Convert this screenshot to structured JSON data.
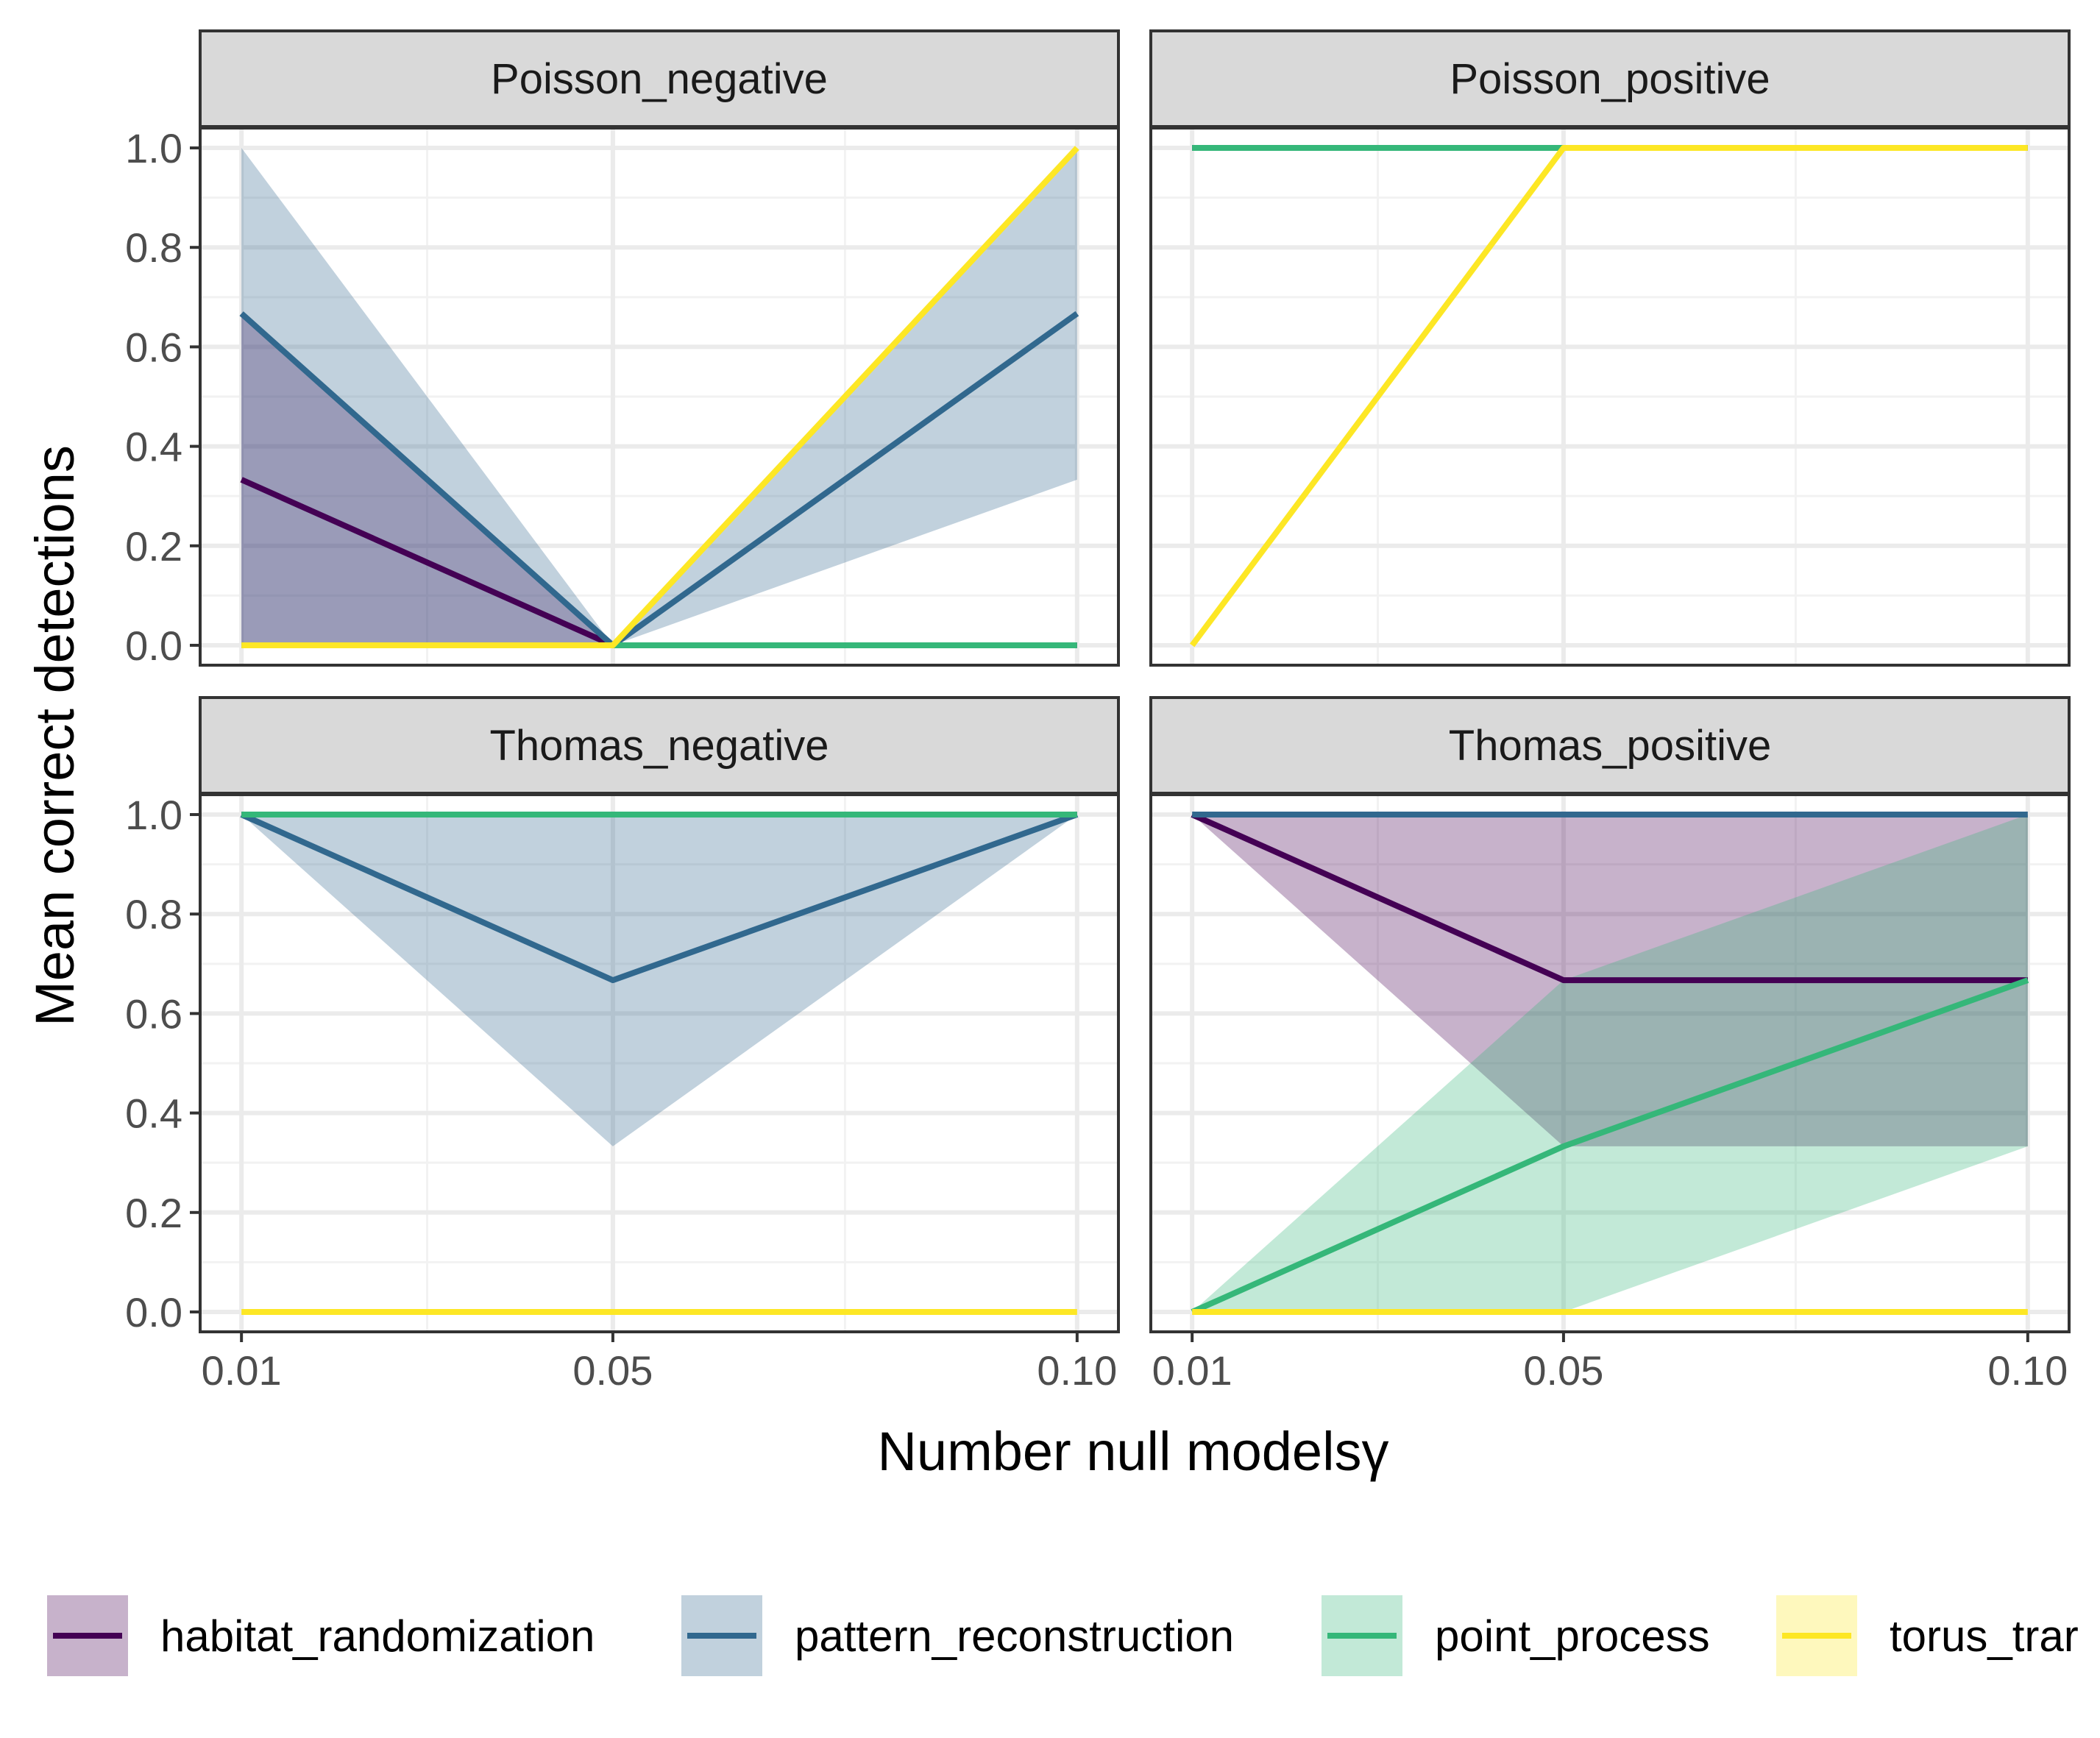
{
  "chart_data": {
    "type": "line",
    "xlabel": "Number null modelsγ",
    "ylabel": "Mean correct detections",
    "x": [
      0.01,
      0.05,
      0.1
    ],
    "x_tick_labels": [
      "0.01",
      "0.05",
      "0.10"
    ],
    "y_tick_labels": [
      "0.0",
      "0.2",
      "0.4",
      "0.6",
      "0.8",
      "1.0"
    ],
    "ylim": [
      -0.04,
      1.04
    ],
    "grid": true,
    "legend_position": "bottom",
    "series_colors": {
      "habitat_randomization": "#440154",
      "pattern_reconstruction": "#31688e",
      "point_process": "#35b779",
      "torus_translation": "#fde725"
    },
    "legend": [
      {
        "key": "habitat_randomization",
        "label": "habitat_randomization"
      },
      {
        "key": "pattern_reconstruction",
        "label": "pattern_reconstruction"
      },
      {
        "key": "point_process",
        "label": "point_process"
      },
      {
        "key": "torus_translation",
        "label": "torus_trar"
      }
    ],
    "panels": [
      {
        "title": "Poisson_negative",
        "series": [
          {
            "key": "habitat_randomization",
            "values": [
              0.333,
              0,
              0
            ],
            "lower": [
              0,
              0,
              0
            ],
            "upper": [
              0.667,
              0,
              0
            ]
          },
          {
            "key": "pattern_reconstruction",
            "values": [
              0.667,
              0,
              0.667
            ],
            "lower": [
              0,
              0,
              0.333
            ],
            "upper": [
              1,
              0,
              1
            ]
          },
          {
            "key": "point_process",
            "values": [
              0,
              0,
              0
            ],
            "lower": [
              0,
              0,
              0
            ],
            "upper": [
              0,
              0,
              0
            ]
          },
          {
            "key": "torus_translation",
            "values": [
              0,
              0,
              1
            ],
            "lower": [
              0,
              0,
              1
            ],
            "upper": [
              0,
              0,
              1
            ]
          }
        ]
      },
      {
        "title": "Poisson_positive",
        "series": [
          {
            "key": "habitat_randomization",
            "values": [
              1,
              1,
              1
            ],
            "lower": [
              1,
              1,
              1
            ],
            "upper": [
              1,
              1,
              1
            ]
          },
          {
            "key": "pattern_reconstruction",
            "values": [
              1,
              1,
              1
            ],
            "lower": [
              1,
              1,
              1
            ],
            "upper": [
              1,
              1,
              1
            ]
          },
          {
            "key": "point_process",
            "values": [
              1,
              1,
              1
            ],
            "lower": [
              1,
              1,
              1
            ],
            "upper": [
              1,
              1,
              1
            ]
          },
          {
            "key": "torus_translation",
            "values": [
              0,
              1,
              1
            ],
            "lower": [
              0,
              1,
              1
            ],
            "upper": [
              0,
              1,
              1
            ]
          }
        ]
      },
      {
        "title": "Thomas_negative",
        "series": [
          {
            "key": "habitat_randomization",
            "values": [
              1,
              1,
              1
            ],
            "lower": [
              1,
              1,
              1
            ],
            "upper": [
              1,
              1,
              1
            ]
          },
          {
            "key": "pattern_reconstruction",
            "values": [
              1,
              0.667,
              1
            ],
            "lower": [
              1,
              0.333,
              1
            ],
            "upper": [
              1,
              1,
              1
            ]
          },
          {
            "key": "point_process",
            "values": [
              1,
              1,
              1
            ],
            "lower": [
              1,
              1,
              1
            ],
            "upper": [
              1,
              1,
              1
            ]
          },
          {
            "key": "torus_translation",
            "values": [
              0,
              0,
              0
            ],
            "lower": [
              0,
              0,
              0
            ],
            "upper": [
              0,
              0,
              0
            ]
          }
        ]
      },
      {
        "title": "Thomas_positive",
        "series": [
          {
            "key": "habitat_randomization",
            "values": [
              1,
              0.667,
              0.667
            ],
            "lower": [
              1,
              0.333,
              0.333
            ],
            "upper": [
              1,
              1,
              1
            ]
          },
          {
            "key": "pattern_reconstruction",
            "values": [
              1,
              1,
              1
            ],
            "lower": [
              1,
              1,
              1
            ],
            "upper": [
              1,
              1,
              1
            ]
          },
          {
            "key": "point_process",
            "values": [
              0,
              0.333,
              0.667
            ],
            "lower": [
              0,
              0,
              0.333
            ],
            "upper": [
              0,
              0.667,
              1
            ]
          },
          {
            "key": "torus_translation",
            "values": [
              0,
              0,
              0
            ],
            "lower": [
              0,
              0,
              0
            ],
            "upper": [
              0,
              0,
              0
            ]
          }
        ]
      }
    ]
  }
}
